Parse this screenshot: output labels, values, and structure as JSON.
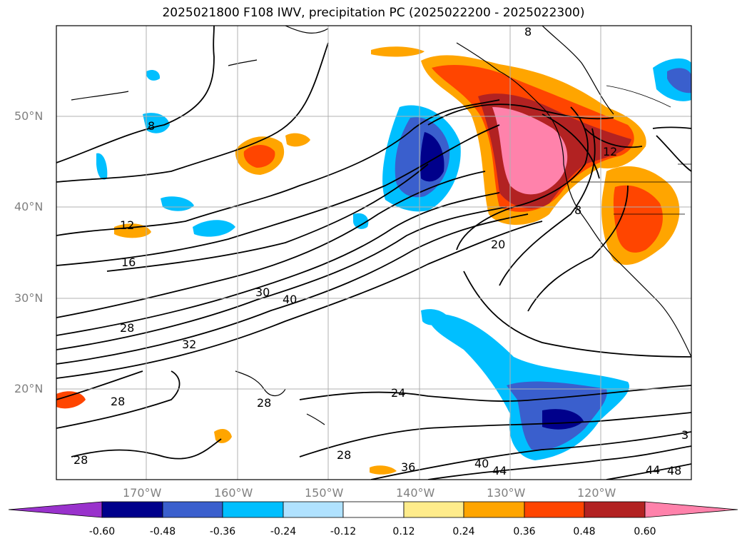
{
  "title": "2025021800 F108 IWV, precipitation PC (2025022200 - 2025022300)",
  "lat_labels": [
    "50°N",
    "40°N",
    "30°N",
    "20°N"
  ],
  "lon_labels": [
    "170°W",
    "160°W",
    "150°W",
    "140°W",
    "130°W",
    "120°W"
  ],
  "contour_labels": [
    "8",
    "8",
    "8",
    "12",
    "12",
    "16",
    "20",
    "24",
    "28",
    "28",
    "28",
    "28",
    "28",
    "30",
    "32",
    "36",
    "40",
    "40",
    "44",
    "44",
    "48",
    "3"
  ],
  "colorbar": {
    "ticks": [
      "-0.60",
      "-0.48",
      "-0.36",
      "-0.24",
      "-0.12",
      "0.12",
      "0.24",
      "0.36",
      "0.48",
      "0.60"
    ],
    "colors": [
      "#9932cc",
      "#00008b",
      "#3a5fcd",
      "#00bfff",
      "#b0e2ff",
      "#ffffff",
      "#ffec8b",
      "#ffa500",
      "#ff4500",
      "#b22222",
      "#ff82ab"
    ]
  }
}
